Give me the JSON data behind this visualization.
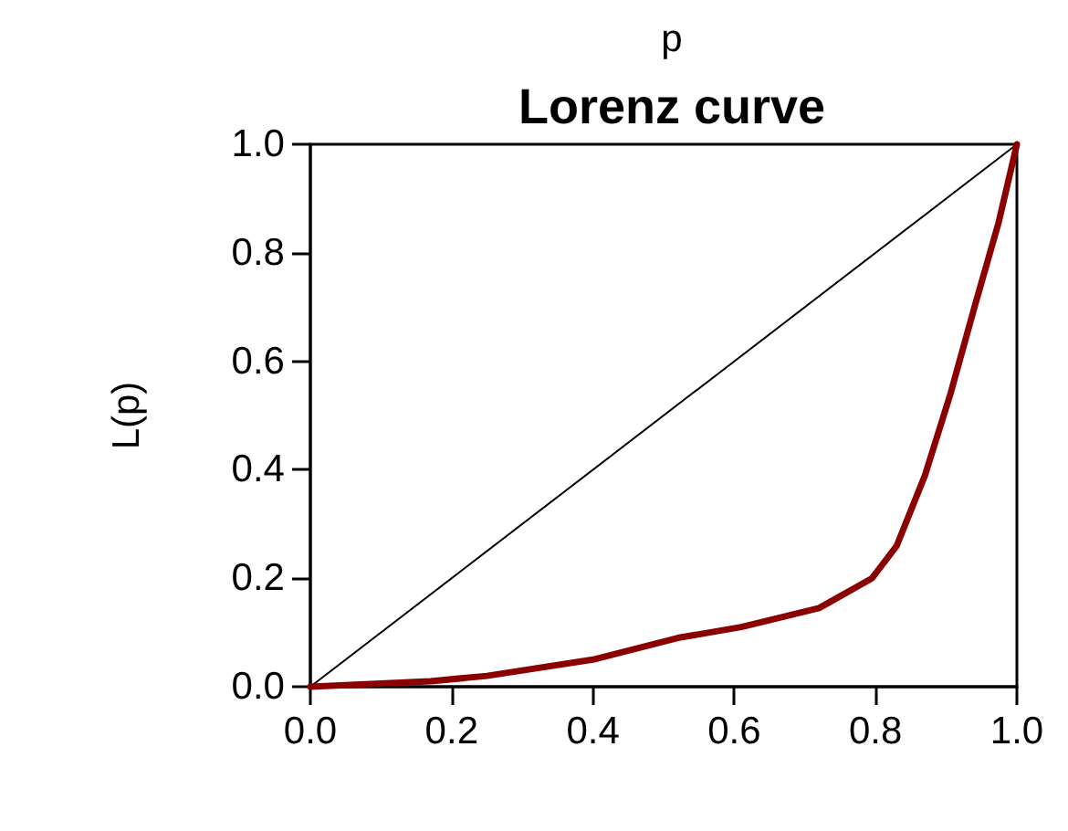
{
  "chart_data": {
    "type": "line",
    "title": "Lorenz curve",
    "xlabel": "p",
    "ylabel": "L(p)",
    "series": [
      {
        "color": "#000000",
        "x": [
          0,
          1
        ],
        "values": [
          0,
          1
        ]
      },
      {
        "color": "#8b0000",
        "x": [
          0,
          0.17,
          0.25,
          0.4,
          0.52,
          0.61,
          0.72,
          0.795,
          0.83,
          0.87,
          0.906,
          0.94,
          0.974,
          1
        ],
        "values": [
          0,
          0.01,
          0.02,
          0.05,
          0.09,
          0.11,
          0.145,
          0.2,
          0.26,
          0.39,
          0.54,
          0.7,
          0.855,
          1
        ]
      }
    ],
    "xlim": [
      0,
      1
    ],
    "ylim": [
      0,
      1
    ],
    "xticks": [
      {
        "value": 0,
        "label": "0.0"
      },
      0.2,
      0.4,
      0.6,
      0.8,
      {
        "value": 1,
        "label": "1.0"
      }
    ],
    "yticks": [
      {
        "value": 0,
        "label": "0.0"
      },
      0.2,
      0.4,
      0.6,
      0.8,
      {
        "value": 1,
        "label": "1.0"
      }
    ],
    "grid": false,
    "marker": "none",
    "line_style": "solid"
  }
}
